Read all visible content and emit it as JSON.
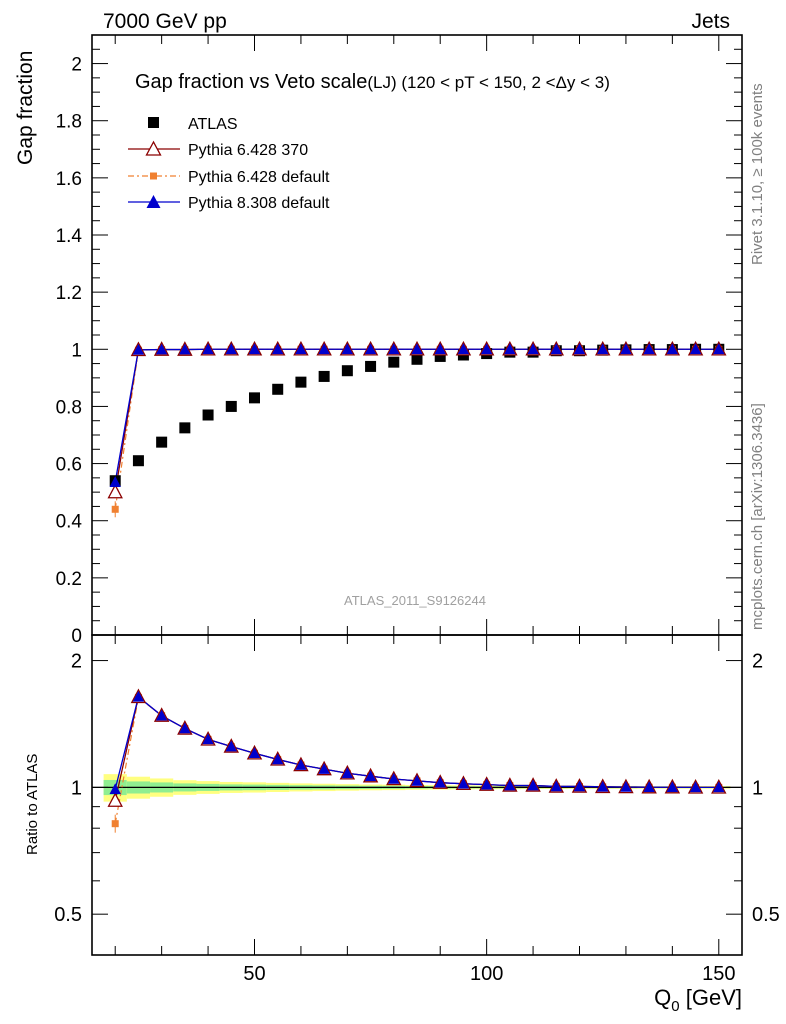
{
  "header": {
    "left_label": "7000 GeV pp",
    "right_label": "Jets"
  },
  "side": {
    "rivet_label": "Rivet 3.1.10, ≥ 100k events",
    "mcplots_label": "mcplots.cern.ch [arXiv:1306.3436]"
  },
  "colors": {
    "atlas": "#000000",
    "pythia370": "#8b0000",
    "pythia6_default": "#f08030",
    "pythia8_default": "#0000cd",
    "band_yellow": "#ffff80",
    "band_green": "#90ee90"
  },
  "chart_data": [
    {
      "type": "scatter",
      "title": "Gap fraction vs Veto scale",
      "title_sub": "(LJ) (120 < pT < 150, 2 <Δy < 3)",
      "ylabel": "Gap fraction",
      "watermark": "ATLAS_2011_S9126244",
      "xlim": [
        15,
        155
      ],
      "ylim": [
        0,
        2.1
      ],
      "y_ticks": [
        0,
        0.2,
        0.4,
        0.6,
        0.8,
        1,
        1.2,
        1.4,
        1.6,
        1.8,
        2
      ],
      "y_tick_labels": [
        "0",
        "0.2",
        "0.4",
        "0.6",
        "0.8",
        "1",
        "1.2",
        "1.4",
        "1.6",
        "1.8",
        "2"
      ],
      "legend_position": "top-left",
      "x": [
        20,
        25,
        30,
        35,
        40,
        45,
        50,
        55,
        60,
        65,
        70,
        75,
        80,
        85,
        90,
        95,
        100,
        105,
        110,
        115,
        120,
        125,
        130,
        135,
        140,
        145,
        150
      ],
      "series": [
        {
          "name": "ATLAS",
          "marker": "square",
          "values": [
            0.54,
            0.61,
            0.675,
            0.725,
            0.77,
            0.8,
            0.83,
            0.86,
            0.885,
            0.905,
            0.925,
            0.94,
            0.955,
            0.965,
            0.975,
            0.98,
            0.985,
            0.99,
            0.99,
            0.995,
            0.995,
            0.997,
            0.998,
            0.999,
            0.999,
            1.0,
            1.0
          ]
        },
        {
          "name": "Pythia 6.428 370",
          "marker": "open-triangle",
          "values": [
            0.5,
            0.998,
            0.999,
            0.999,
            1.0,
            1.0,
            1.0,
            1.0,
            1.0,
            1.0,
            1.0,
            1.0,
            1.0,
            1.0,
            1.0,
            1.0,
            1.0,
            1.0,
            1.0,
            1.0,
            1.0,
            1.0,
            1.0,
            1.0,
            1.0,
            1.0,
            1.0
          ]
        },
        {
          "name": "Pythia 6.428 default",
          "marker": "small-square",
          "values": [
            0.44,
            0.997,
            0.999,
            0.999,
            1.0,
            1.0,
            1.0,
            1.0,
            1.0,
            1.0,
            1.0,
            1.0,
            1.0,
            1.0,
            1.0,
            1.0,
            1.0,
            1.0,
            1.0,
            1.0,
            1.0,
            1.0,
            1.0,
            1.0,
            1.0,
            1.0,
            1.0
          ]
        },
        {
          "name": "Pythia 8.308 default",
          "marker": "filled-triangle",
          "values": [
            0.535,
            0.998,
            0.999,
            0.999,
            1.0,
            1.0,
            1.0,
            1.0,
            1.0,
            1.0,
            1.0,
            1.0,
            1.0,
            1.0,
            1.0,
            1.0,
            1.0,
            1.0,
            1.0,
            1.0,
            1.0,
            1.0,
            1.0,
            1.0,
            1.0,
            1.0,
            1.0
          ]
        }
      ]
    },
    {
      "type": "line",
      "ylabel": "Ratio to ATLAS",
      "xlabel": "Q",
      "xlabel_sub": "0",
      "xlabel_unit": " [GeV]",
      "xlim": [
        15,
        155
      ],
      "ylim": [
        0.4,
        2.3
      ],
      "y_scale": "log",
      "x_ticks": [
        50,
        100,
        150
      ],
      "x_tick_labels": [
        "50",
        "100",
        "150"
      ],
      "y_ticks": [
        0.5,
        1,
        2
      ],
      "y_tick_labels": [
        "0.5",
        "1",
        "2"
      ],
      "x": [
        20,
        25,
        30,
        35,
        40,
        45,
        50,
        55,
        60,
        65,
        70,
        75,
        80,
        85,
        90,
        95,
        100,
        105,
        110,
        115,
        120,
        125,
        130,
        135,
        140,
        145,
        150
      ],
      "series": [
        {
          "name": "Pythia 6.428 370",
          "values": [
            0.93,
            1.64,
            1.48,
            1.38,
            1.3,
            1.25,
            1.205,
            1.165,
            1.13,
            1.105,
            1.08,
            1.063,
            1.047,
            1.036,
            1.026,
            1.02,
            1.015,
            1.01,
            1.01,
            1.005,
            1.005,
            1.003,
            1.002,
            1.001,
            1.001,
            1.0,
            1.0
          ]
        },
        {
          "name": "Pythia 6.428 default",
          "values": [
            0.82,
            1.635,
            1.48,
            1.38,
            1.3,
            1.25,
            1.205,
            1.165,
            1.13,
            1.105,
            1.08,
            1.063,
            1.047,
            1.036,
            1.026,
            1.02,
            1.015,
            1.01,
            1.01,
            1.005,
            1.005,
            1.003,
            1.002,
            1.001,
            1.001,
            1.0,
            1.0
          ]
        },
        {
          "name": "Pythia 8.308 default",
          "values": [
            0.99,
            1.64,
            1.48,
            1.38,
            1.3,
            1.25,
            1.205,
            1.165,
            1.13,
            1.105,
            1.08,
            1.063,
            1.047,
            1.036,
            1.026,
            1.02,
            1.015,
            1.01,
            1.01,
            1.005,
            1.005,
            1.003,
            1.002,
            1.001,
            1.001,
            1.0,
            1.0
          ]
        }
      ],
      "band_half_width": [
        0.075,
        0.06,
        0.05,
        0.04,
        0.035,
        0.03,
        0.028,
        0.025,
        0.022,
        0.02,
        0.018,
        0.016,
        0.015,
        0.013,
        0.012,
        0.011,
        0.01,
        0.01,
        0.009,
        0.009,
        0.008,
        0.008,
        0.008,
        0.007,
        0.007,
        0.007,
        0.007
      ]
    }
  ]
}
